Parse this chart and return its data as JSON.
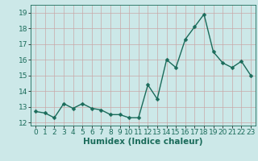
{
  "x": [
    0,
    1,
    2,
    3,
    4,
    5,
    6,
    7,
    8,
    9,
    10,
    11,
    12,
    13,
    14,
    15,
    16,
    17,
    18,
    19,
    20,
    21,
    22,
    23
  ],
  "y": [
    12.7,
    12.6,
    12.3,
    13.2,
    12.9,
    13.2,
    12.9,
    12.8,
    12.5,
    12.5,
    12.3,
    12.3,
    14.4,
    13.5,
    16.0,
    15.5,
    17.3,
    18.1,
    18.9,
    16.5,
    15.8,
    15.5,
    15.9,
    15.0
  ],
  "xlabel": "Humidex (Indice chaleur)",
  "xlim": [
    -0.5,
    23.5
  ],
  "ylim": [
    11.8,
    19.5
  ],
  "yticks": [
    12,
    13,
    14,
    15,
    16,
    17,
    18,
    19
  ],
  "xticks": [
    0,
    1,
    2,
    3,
    4,
    5,
    6,
    7,
    8,
    9,
    10,
    11,
    12,
    13,
    14,
    15,
    16,
    17,
    18,
    19,
    20,
    21,
    22,
    23
  ],
  "line_color": "#1a6b5a",
  "marker": "D",
  "marker_size": 2.5,
  "bg_color": "#cce8e8",
  "grid_color": "#c8a8a8",
  "line_width": 1.0,
  "xlabel_fontsize": 7.5,
  "tick_fontsize": 6.5
}
